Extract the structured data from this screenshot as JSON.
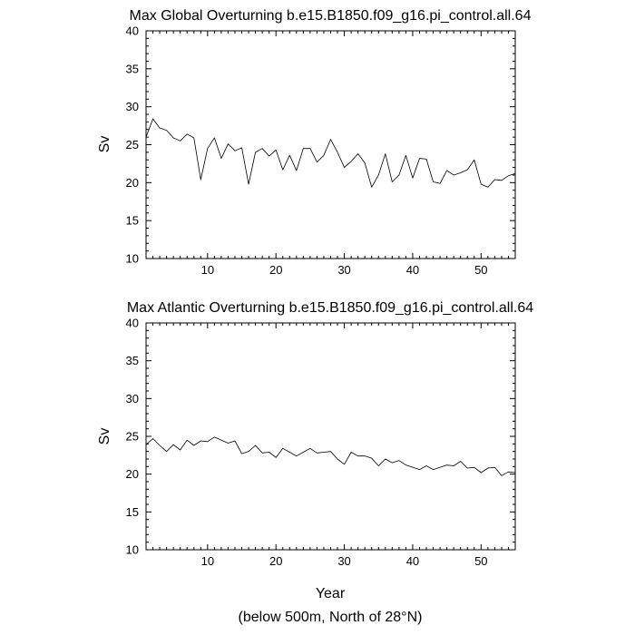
{
  "chart_data": [
    {
      "type": "line",
      "title": "Max Global Overturning b.e15.B1850.f09_g16.pi_control.all.64",
      "xlabel": "",
      "ylabel": "Sv",
      "xlim": [
        1,
        55
      ],
      "ylim": [
        10,
        40
      ],
      "x_ticks": [
        10,
        20,
        30,
        40,
        50
      ],
      "y_ticks": [
        10,
        15,
        20,
        25,
        30,
        35,
        40
      ],
      "grid": false,
      "series": [
        {
          "x": [
            1,
            2,
            3,
            4,
            5,
            6,
            7,
            8,
            9,
            10,
            11,
            12,
            13,
            14,
            15,
            16,
            17,
            18,
            19,
            20,
            21,
            22,
            23,
            24,
            25,
            26,
            27,
            28,
            29,
            30,
            31,
            32,
            33,
            34,
            35,
            36,
            37,
            38,
            39,
            40,
            41,
            42,
            43,
            44,
            45,
            46,
            47,
            48,
            49,
            50,
            51,
            52,
            53,
            54,
            55
          ],
          "values": [
            26.0,
            28.4,
            27.2,
            26.9,
            25.9,
            25.5,
            26.4,
            25.9,
            20.4,
            24.5,
            25.9,
            23.2,
            25.1,
            24.2,
            24.6,
            19.8,
            24.0,
            24.5,
            23.5,
            24.3,
            21.7,
            23.6,
            21.6,
            24.5,
            24.5,
            22.7,
            23.6,
            25.7,
            24.0,
            22.0,
            22.8,
            23.8,
            22.6,
            19.4,
            21.0,
            23.8,
            20.1,
            21.0,
            23.6,
            20.6,
            23.2,
            23.1,
            20.1,
            19.9,
            21.6,
            21.0,
            21.3,
            21.7,
            23.0,
            19.8,
            19.4,
            20.4,
            20.3,
            20.9,
            21.2
          ]
        }
      ]
    },
    {
      "type": "line",
      "title": "Max Atlantic Overturning b.e15.B1850.f09_g16.pi_control.all.64",
      "xlabel": "Year",
      "ylabel": "Sv",
      "xlim": [
        1,
        55
      ],
      "ylim": [
        10,
        40
      ],
      "x_ticks": [
        10,
        20,
        30,
        40,
        50
      ],
      "y_ticks": [
        10,
        15,
        20,
        25,
        30,
        35,
        40
      ],
      "grid": false,
      "series": [
        {
          "x": [
            1,
            2,
            3,
            4,
            5,
            6,
            7,
            8,
            9,
            10,
            11,
            12,
            13,
            14,
            15,
            16,
            17,
            18,
            19,
            20,
            21,
            22,
            23,
            24,
            25,
            26,
            27,
            28,
            29,
            30,
            31,
            32,
            33,
            34,
            35,
            36,
            37,
            38,
            39,
            40,
            41,
            42,
            43,
            44,
            45,
            46,
            47,
            48,
            49,
            50,
            51,
            52,
            53,
            54,
            55
          ],
          "values": [
            23.9,
            24.7,
            23.8,
            23.0,
            23.9,
            23.2,
            24.5,
            23.8,
            24.4,
            24.3,
            24.9,
            24.5,
            24.1,
            24.4,
            22.7,
            23.0,
            23.8,
            22.8,
            22.9,
            22.2,
            23.4,
            22.9,
            22.4,
            22.9,
            23.4,
            22.8,
            22.9,
            23.0,
            22.0,
            21.3,
            22.9,
            22.4,
            22.4,
            22.1,
            21.1,
            22.0,
            21.5,
            21.8,
            21.2,
            20.9,
            20.6,
            21.1,
            20.6,
            20.9,
            21.2,
            21.1,
            21.7,
            20.8,
            20.9,
            20.2,
            20.8,
            20.9,
            19.8,
            20.3,
            20.2
          ]
        }
      ]
    }
  ],
  "footer_note": "(below 500m, North of 28°N)"
}
